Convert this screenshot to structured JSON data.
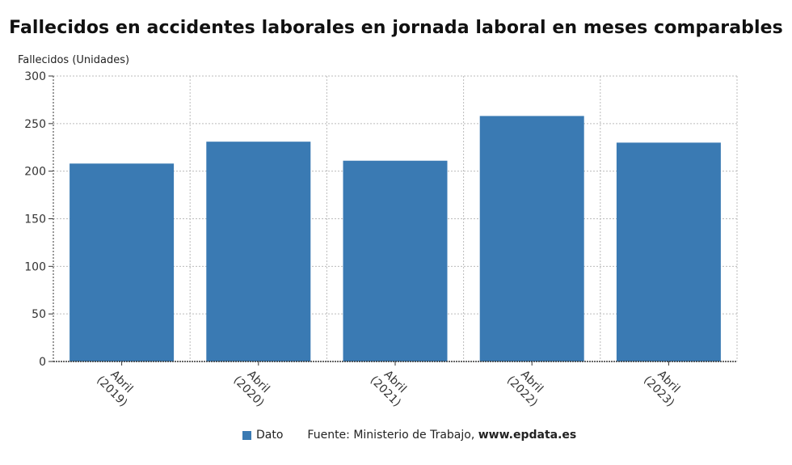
{
  "chart_data": {
    "type": "bar",
    "title": "Fallecidos en accidentes laborales en jornada laboral en meses comparables",
    "ylabel": "Fallecidos (Unidades)",
    "xlabel": "",
    "categories": [
      [
        "Abril",
        "(2019)"
      ],
      [
        "Abril",
        "(2020)"
      ],
      [
        "Abril",
        "(2021)"
      ],
      [
        "Abril",
        "(2022)"
      ],
      [
        "Abril",
        "(2023)"
      ]
    ],
    "series": [
      {
        "name": "Dato",
        "color": "#3a7ab3",
        "values": [
          208,
          231,
          211,
          258,
          230
        ]
      }
    ],
    "ylim": [
      0,
      300
    ],
    "yticks": [
      0,
      50,
      100,
      150,
      200,
      250,
      300
    ],
    "grid": true,
    "legend_position": "bottom"
  },
  "footer": {
    "legend_label": "Dato",
    "source_prefix": "Fuente: Ministerio de Trabajo, ",
    "source_site": "www.epdata.es"
  }
}
